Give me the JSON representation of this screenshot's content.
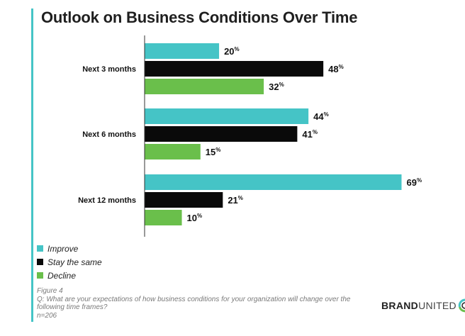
{
  "chart_data": {
    "type": "bar",
    "orientation": "horizontal",
    "title": "Outlook on Business Conditions Over Time",
    "categories": [
      "Next 3 months",
      "Next 6 months",
      "Next 12 months"
    ],
    "series": [
      {
        "name": "Improve",
        "values": [
          20,
          44,
          69
        ],
        "color": "#45c4c6"
      },
      {
        "name": "Stay the same",
        "values": [
          48,
          41,
          21
        ],
        "color": "#0a0a0a"
      },
      {
        "name": "Decline",
        "values": [
          32,
          15,
          10
        ],
        "color": "#6abf4b"
      }
    ],
    "value_suffix": "%",
    "xlim": [
      0,
      75
    ],
    "legend_position": "bottom-left",
    "grid": false
  },
  "notes": {
    "figure": "Figure 4",
    "question": "Q: What are your expectations of how business conditions for your organization will change over the following time frames?",
    "sample": "n=206"
  },
  "logo": {
    "bold": "BRAND",
    "light": "UNITED"
  },
  "colors": {
    "accent": "#45c4c6",
    "axis": "#333333"
  }
}
